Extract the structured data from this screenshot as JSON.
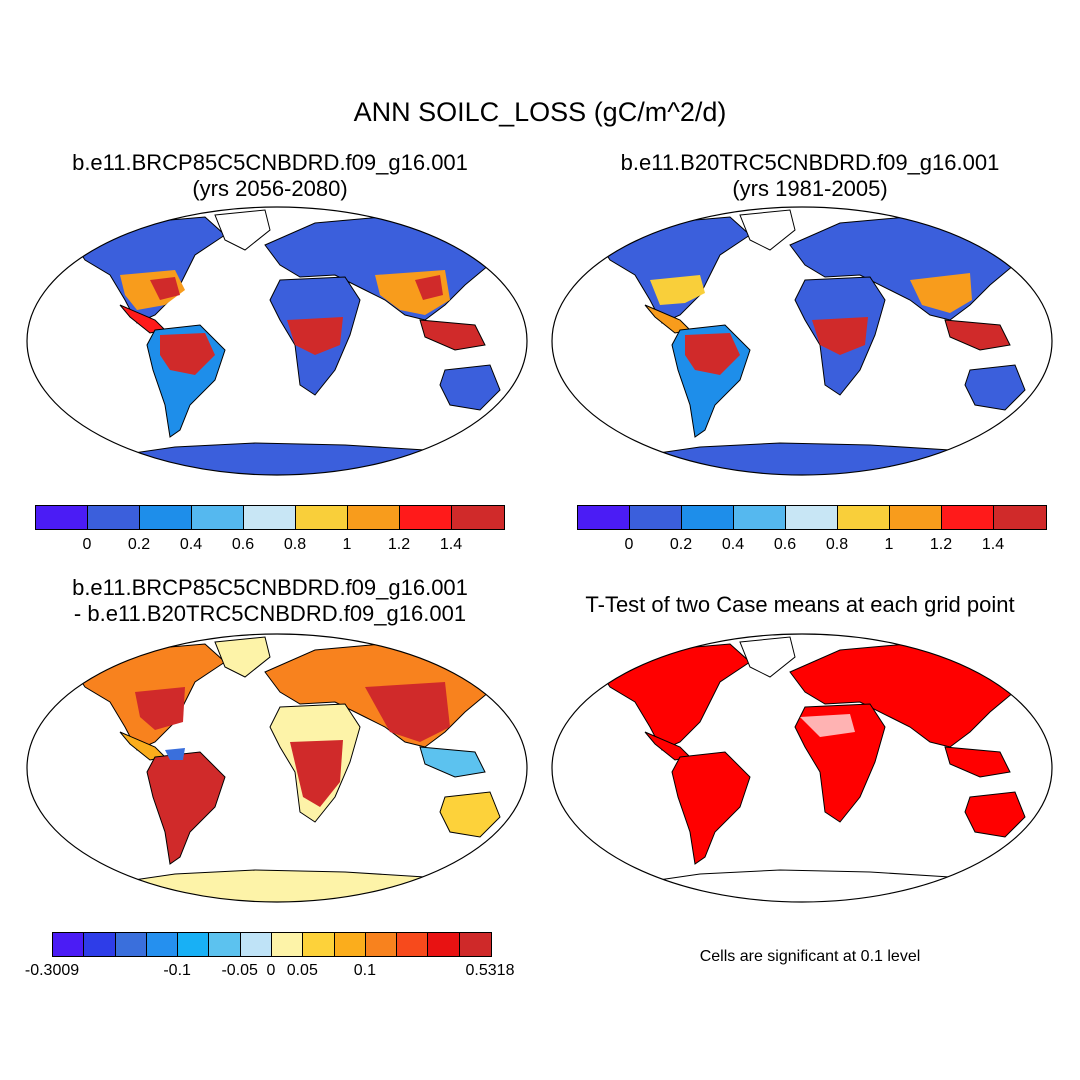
{
  "title": "ANN SOILC_LOSS (gC/m^2/d)",
  "panels": [
    {
      "id": "case1",
      "title_line1": "b.e11.BRCP85C5CNBDRD.f09_g16.001",
      "title_line2": "(yrs 2056-2080)"
    },
    {
      "id": "case2",
      "title_line1": "b.e11.B20TRC5CNBDRD.f09_g16.001",
      "title_line2": "(yrs 1981-2005)"
    },
    {
      "id": "diff",
      "title_line1": "b.e11.BRCP85C5CNBDRD.f09_g16.001",
      "title_line2": "- b.e11.B20TRC5CNBDRD.f09_g16.001"
    },
    {
      "id": "ttest",
      "title_line1": "T-Test of two Case means at each grid point"
    }
  ],
  "colorbars": {
    "main": {
      "colors": [
        "#4b1cf5",
        "#3b5fdc",
        "#1e8eea",
        "#55b8ef",
        "#c8e6f5",
        "#f9cf3a",
        "#f89c1c",
        "#ff1a1a",
        "#d02a2a"
      ],
      "tick_labels": [
        "0",
        "0.2",
        "0.4",
        "0.6",
        "0.8",
        "1",
        "1.2",
        "1.4"
      ]
    },
    "diff": {
      "colors": [
        "#4b1cf5",
        "#2e3de8",
        "#3a6fdc",
        "#2590ef",
        "#18b0f5",
        "#5cc2ef",
        "#bfe3f7",
        "#fdf3a8",
        "#fdd23a",
        "#fbad1c",
        "#f8821e",
        "#f74a1c",
        "#e81212",
        "#cf2929"
      ],
      "tick_labels": [
        "-0.3009",
        "-0.1",
        "-0.05",
        "0",
        "0.05",
        "0.1",
        "0.5318"
      ]
    }
  },
  "note": "Cells are significant at 0.1 level",
  "map_colors": {
    "ocean": "#ffffff",
    "coast": "#000000",
    "low": "#3b5fdc",
    "high": "#d02a2a",
    "diff_base": "#fdf3a8",
    "ttest": "#ff0000"
  }
}
